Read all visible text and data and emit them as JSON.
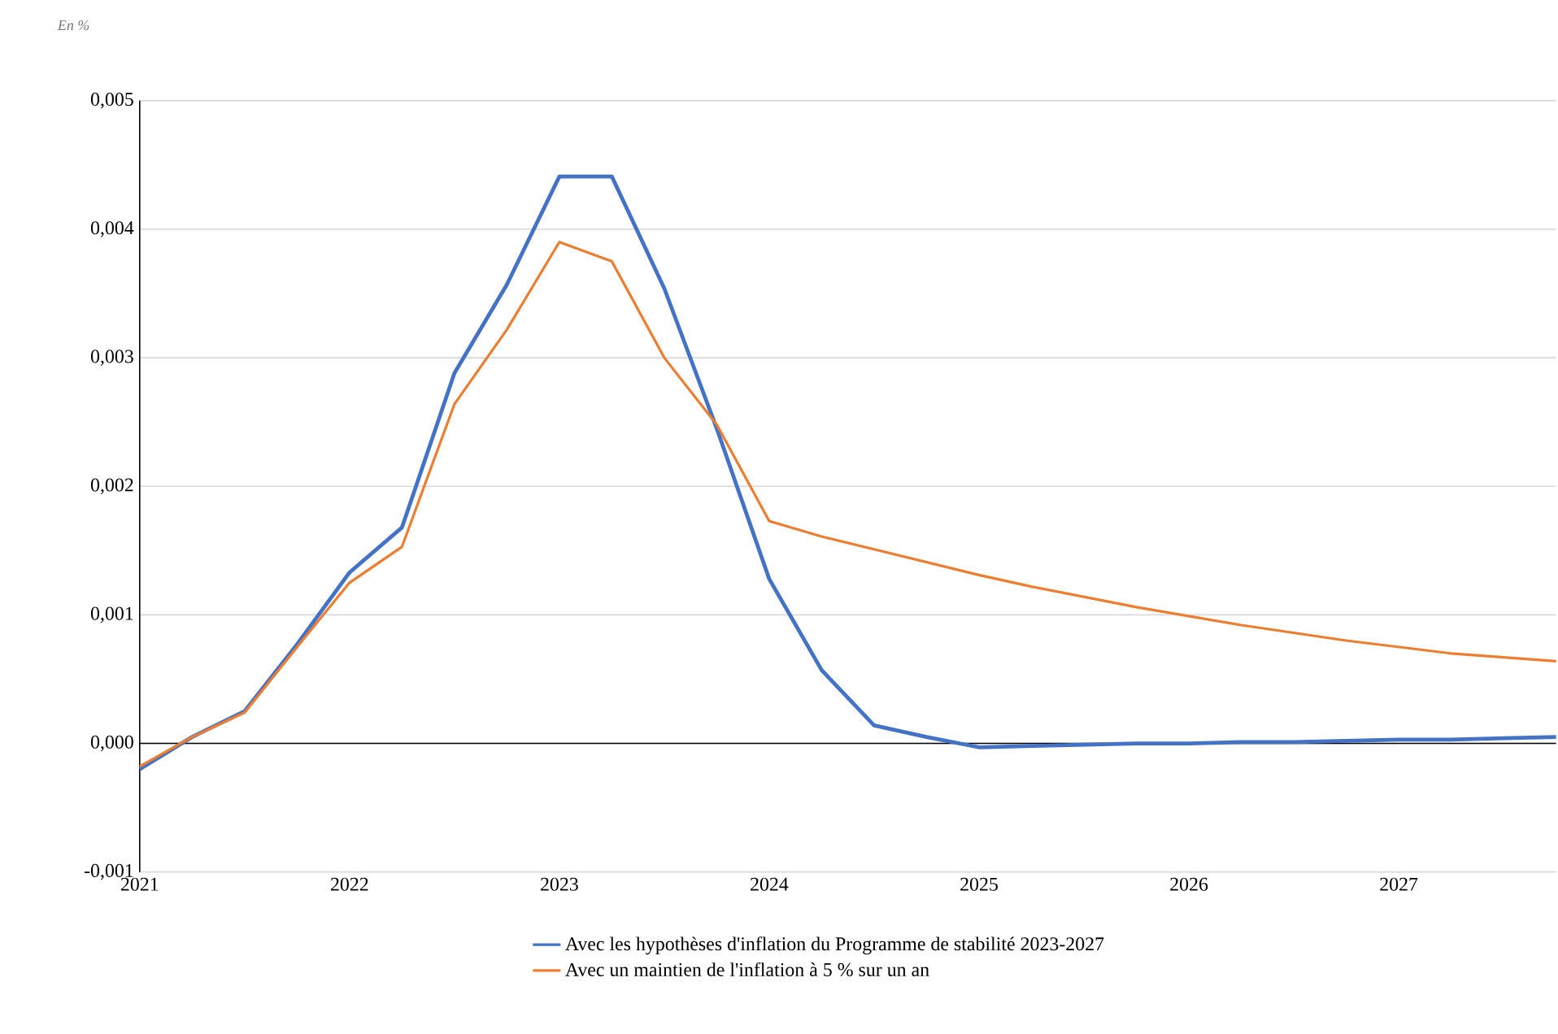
{
  "chart_data": {
    "type": "line",
    "annotations": [
      "En %"
    ],
    "x": [
      2021,
      2021.25,
      2021.5,
      2021.75,
      2022,
      2022.25,
      2022.5,
      2022.75,
      2023,
      2023.25,
      2023.5,
      2023.75,
      2024,
      2024.25,
      2024.5,
      2024.75,
      2025,
      2025.25,
      2025.5,
      2025.75,
      2026,
      2026.25,
      2026.5,
      2026.75,
      2027,
      2027.25,
      2027.5,
      2027.75
    ],
    "series": [
      {
        "name": "Avec les hypothèses d'inflation du Programme de stabilité 2023-2027",
        "color": "#4472c4",
        "values": [
          -0.0002,
          5e-05,
          0.00025,
          0.00077,
          0.00133,
          0.00168,
          0.00288,
          0.00357,
          0.00441,
          0.00441,
          0.00354,
          0.00245,
          0.00128,
          0.00057,
          0.00014,
          5e-05,
          -3e-05,
          -2e-05,
          -1e-05,
          0,
          0,
          1e-05,
          1e-05,
          2e-05,
          3e-05,
          3e-05,
          4e-05,
          5e-05
        ]
      },
      {
        "name": "Avec un maintien de l'inflation à 5 % sur un an",
        "color": "#ed7d31",
        "values": [
          -0.00018,
          5e-05,
          0.00024,
          0.00075,
          0.00125,
          0.00153,
          0.00264,
          0.00322,
          0.0039,
          0.00375,
          0.003,
          0.00248,
          0.00173,
          0.00161,
          0.00151,
          0.00141,
          0.00131,
          0.00122,
          0.00114,
          0.00106,
          0.00099,
          0.00092,
          0.00086,
          0.0008,
          0.00075,
          0.0007,
          0.00067,
          0.00064
        ]
      }
    ],
    "xlim": [
      2021,
      2027.75
    ],
    "xticks": [
      2021,
      2022,
      2023,
      2024,
      2025,
      2026,
      2027
    ],
    "ylim": [
      -0.001,
      0.005
    ],
    "yticks": [
      {
        "value": -0.001,
        "label": "-0,001"
      },
      {
        "value": 0,
        "label": "0,000"
      },
      {
        "value": 0.001,
        "label": "0,001"
      },
      {
        "value": 0.002,
        "label": "0,002"
      },
      {
        "value": 0.003,
        "label": "0,003"
      },
      {
        "value": 0.004,
        "label": "0,004"
      },
      {
        "value": 0.005,
        "label": "0,005"
      }
    ],
    "ref_lines": [
      {
        "axis": "y",
        "value": 0,
        "color": "#000000"
      }
    ],
    "grid": "y",
    "legend": "bottom",
    "marker": "none",
    "line_style": "solid"
  }
}
